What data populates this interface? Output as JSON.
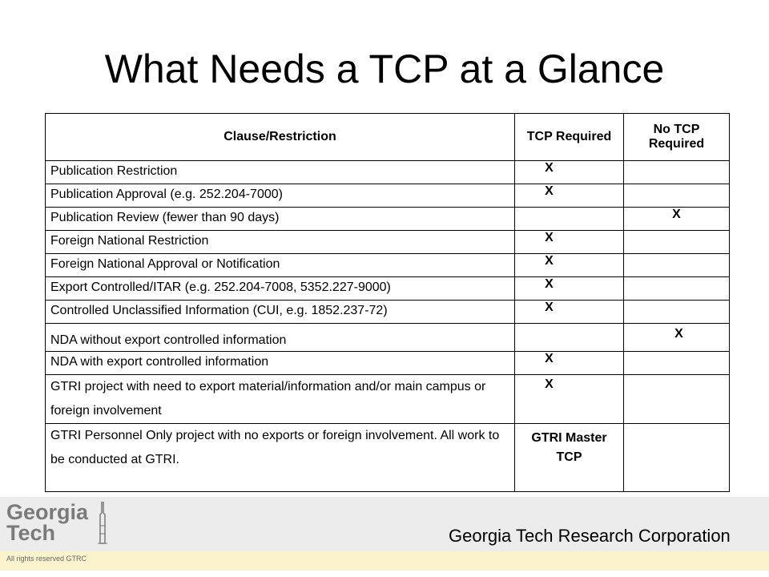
{
  "title": "What Needs a TCP at a Glance",
  "table": {
    "headers": [
      "Clause/Restriction",
      "TCP Required",
      "No TCP Required"
    ],
    "rows": [
      {
        "clause": "Publication Restriction",
        "tcp": "X",
        "no_tcp": ""
      },
      {
        "clause": "Publication Approval (e.g. 252.204-7000)",
        "tcp": "X",
        "no_tcp": ""
      },
      {
        "clause": "Publication Review (fewer than 90 days)",
        "tcp": "",
        "no_tcp": "X"
      },
      {
        "clause": "Foreign National Restriction",
        "tcp": "X",
        "no_tcp": ""
      },
      {
        "clause": "Foreign National Approval or Notification",
        "tcp": "X",
        "no_tcp": ""
      },
      {
        "clause": "Export Controlled/ITAR (e.g. 252.204-7008, 5352.227-9000)",
        "tcp": "X",
        "no_tcp": ""
      },
      {
        "clause": "Controlled Unclassified Information (CUI, e.g. 1852.237-72)",
        "tcp": "X",
        "no_tcp": ""
      },
      {
        "clause": "NDA without export controlled information",
        "tcp": "",
        "no_tcp": "X"
      },
      {
        "clause": "NDA with export controlled information",
        "tcp": "X",
        "no_tcp": ""
      },
      {
        "clause": "GTRI project with need to export material/information and/or main campus or foreign involvement",
        "tcp": "X",
        "no_tcp": ""
      },
      {
        "clause": "GTRI Personnel Only project with no exports or foreign involvement.  All work to be conducted at GTRI.",
        "tcp": "GTRI Master TCP",
        "no_tcp": ""
      }
    ]
  },
  "footer": {
    "logo_line1": "Georgia",
    "logo_line2": "Tech",
    "organization": "Georgia Tech Research Corporation",
    "rights": "All rights reserved GTRC"
  }
}
